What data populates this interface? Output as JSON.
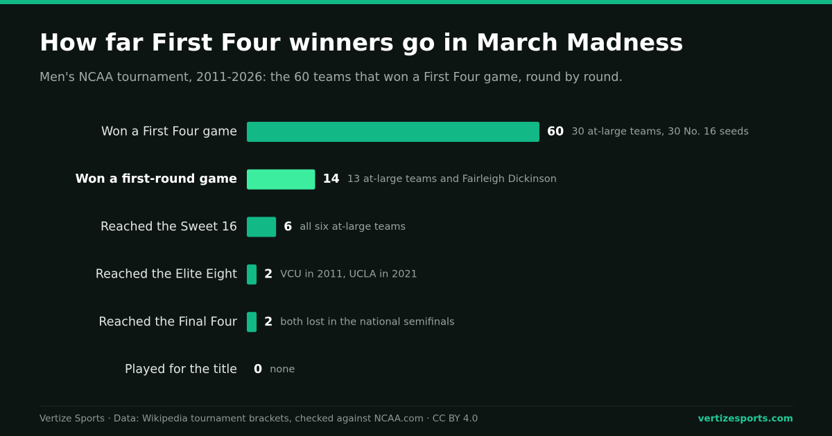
{
  "header": {
    "title": "How far First Four winners go in March Madness",
    "subtitle": "Men's NCAA tournament, 2011-2026: the 60 teams that won a First Four game, round by round."
  },
  "colors": {
    "accent": "#12b886",
    "highlight": "#3ded9f",
    "background": "#0d1513"
  },
  "chart_data": {
    "type": "bar",
    "orientation": "horizontal",
    "categories": [
      "Won a First Four game",
      "Won a first-round game",
      "Reached the Sweet 16",
      "Reached the Elite Eight",
      "Reached the Final Four",
      "Played for the title"
    ],
    "values": [
      60,
      14,
      6,
      2,
      2,
      0
    ],
    "annotations": [
      "30 at-large teams, 30 No. 16 seeds",
      "13 at-large teams and Fairleigh Dickinson",
      "all six at-large teams",
      "VCU in 2011, UCLA in 2021",
      "both lost in the national semifinals",
      "none"
    ],
    "highlighted": "Won a first-round game",
    "grid": false,
    "xlim": [
      0,
      60
    ]
  },
  "footer": {
    "source": "Vertize Sports · Data: Wikipedia tournament brackets, checked against NCAA.com · CC BY 4.0",
    "site": "vertizesports.com"
  }
}
